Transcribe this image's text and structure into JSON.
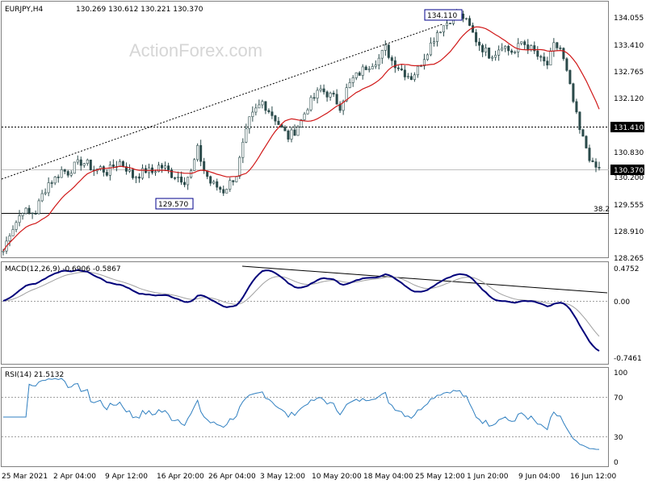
{
  "chart_data": [
    {
      "type": "candlestick",
      "title": "EURJPY,H4",
      "ohlc_readout": "130.269 130.612 130.221 130.370",
      "watermark": "ActionForex.com",
      "ylim": [
        128.265,
        134.5
      ],
      "yticks": [
        "134.055",
        "133.410",
        "132.765",
        "132.120",
        "131.410",
        "130.830",
        "130.200",
        "129.555",
        "128.910",
        "128.265"
      ],
      "hlines": [
        {
          "label": "131.410",
          "value": 131.41,
          "style": "dashed"
        },
        {
          "label": "130.370",
          "value": 130.37,
          "style": "solid"
        },
        {
          "label": "38.2",
          "value": 129.31,
          "style": "solid"
        }
      ],
      "annotations": [
        {
          "text": "134.110",
          "value": 134.11
        },
        {
          "text": "129.570",
          "value": 129.57
        }
      ],
      "ma_color": "#d01818",
      "candle_color": "#2a4a4a",
      "close_series": [
        128.4,
        128.85,
        129.1,
        129.4,
        129.3,
        129.35,
        129.75,
        130.05,
        130.15,
        130.35,
        130.3,
        130.45,
        130.55,
        130.5,
        130.35,
        130.4,
        130.3,
        130.45,
        130.55,
        130.4,
        130.2,
        130.25,
        130.35,
        130.3,
        130.45,
        130.4,
        130.25,
        130.2,
        130.1,
        130.3,
        130.85,
        130.35,
        130.05,
        129.95,
        129.85,
        130.05,
        130.25,
        130.95,
        131.55,
        131.8,
        132.0,
        131.8,
        131.6,
        131.35,
        131.15,
        131.3,
        131.55,
        131.9,
        132.1,
        132.3,
        132.2,
        132.1,
        131.9,
        132.3,
        132.55,
        132.7,
        132.85,
        132.95,
        133.05,
        133.3,
        133.0,
        132.85,
        132.7,
        132.6,
        132.8,
        133.1,
        133.4,
        133.7,
        133.85,
        134.0,
        134.1,
        134.05,
        133.8,
        133.5,
        133.3,
        133.15,
        133.2,
        133.4,
        133.25,
        133.2,
        133.45,
        133.35,
        133.2,
        133.0,
        132.9,
        133.35,
        133.3,
        132.7,
        132.0,
        131.3,
        130.9,
        130.45,
        130.37
      ]
    },
    {
      "type": "line",
      "title": "MACD(12,26,9) -0.6906 -0.5867",
      "yticks": [
        "0.4752",
        "0.00",
        "-0.7461"
      ],
      "trendline": true,
      "macd_color": "#00007a",
      "signal_color": "#a0a0a0"
    },
    {
      "type": "line",
      "title": "RSI(14) 21.5132",
      "yticks": [
        "100",
        "70",
        "30",
        "0"
      ],
      "levels": [
        70,
        30
      ],
      "rsi_color": "#2f7fc0"
    }
  ],
  "x_axis": [
    "25 Mar 2021",
    "2 Apr 04:00",
    "9 Apr 12:00",
    "16 Apr 20:00",
    "26 Apr 04:00",
    "3 May 12:00",
    "10 May 20:00",
    "18 May 04:00",
    "25 May 12:00",
    "1 Jun 20:00",
    "9 Jun 04:00",
    "16 Jun 12:00"
  ]
}
